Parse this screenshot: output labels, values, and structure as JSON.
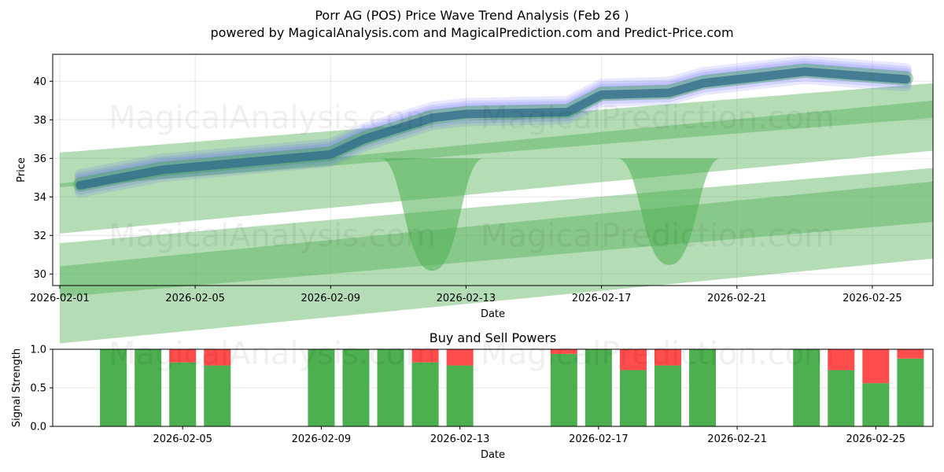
{
  "title_line1": "Porr AG (POS) Price Wave Trend Analysis (Feb 26 )",
  "title_line2": "powered by MagicalAnalysis.com and MagicalPrediction.com and Predict-Price.com",
  "watermarks": [
    "MagicalAnalysis.com",
    "MagicalPrediction.com"
  ],
  "chart_data": [
    {
      "type": "line",
      "xlabel": "Date",
      "ylabel": "Price",
      "ylim": [
        29.4,
        41.4
      ],
      "xlim": [
        "2026-01-31T19:00",
        "2026-02-26T19:00"
      ],
      "grid": true,
      "x_tick_labels": [
        "2026-02-01",
        "2026-02-05",
        "2026-02-09",
        "2026-02-13",
        "2026-02-17",
        "2026-02-21",
        "2026-02-25"
      ],
      "y_tick_labels": [
        "30",
        "32",
        "34",
        "36",
        "38",
        "40"
      ],
      "y_ticks": [
        30,
        32,
        34,
        36,
        38,
        40
      ],
      "colors": {
        "band": "#4caf50",
        "wave_blue": "#4444ff",
        "wave_core": "#2e6b8a"
      },
      "price_wave": {
        "x": [
          "2026-02-01.5",
          "2026-02-04",
          "2026-02-09",
          "2026-02-10",
          "2026-02-12",
          "2026-02-13",
          "2026-02-16",
          "2026-02-17",
          "2026-02-19",
          "2026-02-20",
          "2026-02-23",
          "2026-02-26"
        ],
        "dates": [
          "2026-02-01",
          "2026-02-04",
          "2026-02-09",
          "2026-02-10",
          "2026-02-12",
          "2026-02-13",
          "2026-02-16",
          "2026-02-17",
          "2026-02-19",
          "2026-02-20",
          "2026-02-23",
          "2026-02-26"
        ],
        "values": [
          34.6,
          35.4,
          36.2,
          37.0,
          38.1,
          38.3,
          38.4,
          39.3,
          39.4,
          39.9,
          40.5,
          40.1
        ]
      },
      "trend_bands": [
        {
          "start": [
            "2026-02-01",
            35.4
          ],
          "end": [
            "2026-02-26.8",
            39.0
          ],
          "width": 1.8
        },
        {
          "start": [
            "2026-02-01",
            33.4
          ],
          "end": [
            "2026-02-26.8",
            37.7
          ],
          "width": 2.6
        },
        {
          "start": [
            "2026-02-01",
            30.2
          ],
          "end": [
            "2026-02-26.8",
            34.1
          ],
          "width": 2.8
        },
        {
          "start": [
            "2026-02-01",
            28.4
          ],
          "end": [
            "2026-02-26.8",
            32.8
          ],
          "width": 4.0
        }
      ],
      "dips": [
        {
          "date": "2026-02-12",
          "low": 30.5
        },
        {
          "date": "2026-02-19",
          "low": 30.8
        }
      ]
    },
    {
      "type": "bar",
      "title": "Buy and Sell Powers",
      "xlabel": "Date",
      "ylabel": "Signal Strength",
      "ylim": [
        0,
        1
      ],
      "x_tick_labels": [
        "2026-02-05",
        "2026-02-09",
        "2026-02-13",
        "2026-02-17",
        "2026-02-21",
        "2026-02-25"
      ],
      "y_tick_labels": [
        "0.0",
        "0.5",
        "1.0"
      ],
      "y_ticks": [
        0,
        0.5,
        1.0
      ],
      "colors": {
        "buy": "#4caf50",
        "sell": "#ff4c4c"
      },
      "dates": [
        "2026-02-03",
        "2026-02-04",
        "2026-02-05",
        "2026-02-06",
        "2026-02-09",
        "2026-02-10",
        "2026-02-11",
        "2026-02-12",
        "2026-02-13",
        "2026-02-16",
        "2026-02-17",
        "2026-02-18",
        "2026-02-19",
        "2026-02-20",
        "2026-02-23",
        "2026-02-24",
        "2026-02-25",
        "2026-02-26"
      ],
      "series": [
        {
          "name": "Buy",
          "values": [
            1.0,
            1.0,
            0.83,
            0.79,
            1.0,
            1.0,
            1.0,
            0.83,
            0.79,
            0.94,
            1.0,
            0.73,
            0.79,
            1.0,
            1.0,
            0.73,
            0.56,
            0.88
          ]
        },
        {
          "name": "Sell",
          "values": [
            0.0,
            0.0,
            0.17,
            0.21,
            0.0,
            0.0,
            0.0,
            0.17,
            0.21,
            0.06,
            0.0,
            0.27,
            0.21,
            0.0,
            0.0,
            0.27,
            0.44,
            0.12
          ]
        }
      ]
    }
  ]
}
